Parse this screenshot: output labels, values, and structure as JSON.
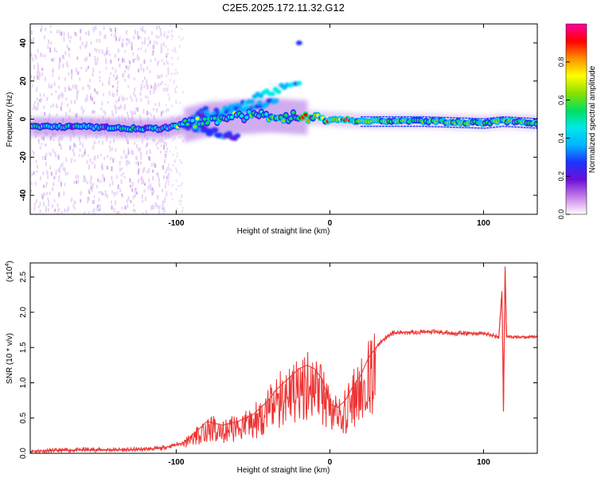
{
  "title": "C2E5.2025.172.11.32.G12",
  "colors": {
    "snr_line": "#ee3333",
    "axis": "#000000",
    "colormap": [
      "#ffffff",
      "#c87ee8",
      "#6a0fd8",
      "#1f33ff",
      "#00b4ff",
      "#00e8e8",
      "#00e060",
      "#8ce000",
      "#ffff00",
      "#ff9000",
      "#ff0000",
      "#ff00a0"
    ]
  },
  "chart_data": [
    {
      "type": "heatmap",
      "xlabel": "Height of straight line (km)",
      "ylabel": "Frequency (Hz)",
      "xlim": [
        -195,
        135
      ],
      "ylim": [
        -50,
        50
      ],
      "x_ticks": [
        -100,
        0,
        100
      ],
      "y_ticks": [
        -40,
        -20,
        0,
        20,
        40
      ],
      "colorbar": {
        "label": "Normalized spectral amplitude",
        "range": [
          0,
          1
        ],
        "ticks": [
          "0.0",
          "0.2",
          "0.4",
          "0.6",
          "0.8"
        ]
      },
      "ridge": [
        {
          "x": -195,
          "freq": -4
        },
        {
          "x": -160,
          "freq": -4
        },
        {
          "x": -130,
          "freq": -5
        },
        {
          "x": -110,
          "freq": -5
        },
        {
          "x": -95,
          "freq": -3
        },
        {
          "x": -80,
          "freq": 0
        },
        {
          "x": -60,
          "freq": 1
        },
        {
          "x": -40,
          "freq": 2
        },
        {
          "x": -20,
          "freq": 1
        },
        {
          "x": 0,
          "freq": 0
        },
        {
          "x": 20,
          "freq": -1
        },
        {
          "x": 60,
          "freq": -1
        },
        {
          "x": 100,
          "freq": -2
        },
        {
          "x": 112,
          "freq": -1
        },
        {
          "x": 135,
          "freq": -2
        }
      ]
    },
    {
      "type": "line",
      "xlabel": "Height of straight line (km)",
      "ylabel": "SNR (10 * v/v)",
      "y_multiplier": "(x10",
      "y_multiplier_exp": "4",
      "xlim": [
        -195,
        135
      ],
      "ylim": [
        0,
        2.7
      ],
      "x_ticks": [
        -100,
        0,
        100
      ],
      "y_ticks": [
        "0.0",
        "0.5",
        "1.0",
        "1.5",
        "2.0",
        "2.5"
      ],
      "series": [
        {
          "color": "#ee3333",
          "x": [
            -195,
            -160,
            -130,
            -110,
            -95,
            -90,
            -80,
            -70,
            -60,
            -50,
            -40,
            -35,
            -30,
            -25,
            -20,
            -15,
            -10,
            -5,
            0,
            5,
            10,
            15,
            20,
            25,
            30,
            35,
            40,
            50,
            60,
            70,
            80,
            90,
            100,
            110,
            112,
            113,
            114,
            115,
            120,
            135
          ],
          "y": [
            0.03,
            0.05,
            0.05,
            0.07,
            0.15,
            0.25,
            0.45,
            0.4,
            0.45,
            0.55,
            0.75,
            0.9,
            1.0,
            1.1,
            1.2,
            1.25,
            1.2,
            1.05,
            0.7,
            0.65,
            0.75,
            0.95,
            1.1,
            1.35,
            1.5,
            1.62,
            1.7,
            1.72,
            1.72,
            1.72,
            1.7,
            1.7,
            1.7,
            1.65,
            2.3,
            0.6,
            2.65,
            1.65,
            1.65,
            1.65
          ]
        }
      ]
    }
  ]
}
